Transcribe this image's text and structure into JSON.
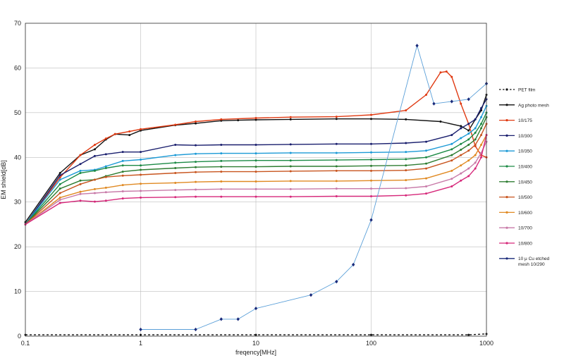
{
  "chart_data": {
    "type": "line",
    "xlabel": "freqency[MHz]",
    "ylabel": "EM shield[dB]",
    "x_scale": "log",
    "xlim": [
      0.1,
      1000
    ],
    "ylim": [
      0,
      70
    ],
    "x_ticks": [
      "0.1",
      "1",
      "10",
      "100",
      "1000"
    ],
    "y_ticks": [
      "0",
      "10",
      "20",
      "30",
      "40",
      "50",
      "60",
      "70"
    ],
    "grid": true,
    "legend_position": "right",
    "series": [
      {
        "name": "PET film",
        "color": "#111111",
        "dashed": true,
        "x": [
          0.1,
          1,
          10,
          100,
          700,
          1000
        ],
        "y": [
          0.3,
          0.3,
          0.3,
          0.3,
          0.3,
          0.5
        ]
      },
      {
        "name": "Ag photo mesh",
        "color": "#111111",
        "x": [
          0.1,
          0.2,
          0.3,
          0.4,
          0.5,
          0.6,
          0.8,
          1,
          2,
          3,
          5,
          7,
          10,
          20,
          50,
          100,
          200,
          400,
          600,
          700,
          800,
          900,
          1000
        ],
        "y": [
          25.5,
          36.5,
          40.5,
          41.8,
          44,
          45.2,
          45,
          46,
          47.2,
          47.6,
          48.2,
          48.3,
          48.4,
          48.5,
          48.6,
          48.6,
          48.5,
          48,
          47,
          46,
          48.5,
          50.5,
          54
        ]
      },
      {
        "name": "10/175",
        "color": "#e03a12",
        "x": [
          0.1,
          0.2,
          0.3,
          0.4,
          0.5,
          0.6,
          0.8,
          1,
          2,
          3,
          5,
          10,
          20,
          50,
          100,
          200,
          300,
          400,
          450,
          500,
          600,
          700,
          800,
          900,
          1000
        ],
        "y": [
          25,
          35.5,
          40.5,
          42.8,
          44.2,
          45.2,
          45.8,
          46.3,
          47.3,
          48,
          48.5,
          48.8,
          49,
          49.1,
          49.5,
          50.5,
          54,
          59,
          59.2,
          58,
          52,
          47.5,
          42.5,
          40.5,
          40
        ]
      },
      {
        "name": "10/300",
        "color": "#1a1f6e",
        "x": [
          0.1,
          0.2,
          0.3,
          0.4,
          0.5,
          0.7,
          1,
          2,
          3,
          5,
          10,
          20,
          50,
          100,
          200,
          300,
          500,
          600,
          700,
          800,
          900,
          1000
        ],
        "y": [
          25,
          36,
          38.5,
          40.3,
          40.7,
          41.2,
          41.2,
          42.8,
          42.7,
          42.8,
          42.8,
          42.9,
          43,
          43,
          43.2,
          43.5,
          45,
          46.5,
          47.5,
          48.5,
          51,
          53
        ]
      },
      {
        "name": "10/350",
        "color": "#1c9ad6",
        "x": [
          0.1,
          0.2,
          0.3,
          0.4,
          0.5,
          0.7,
          1,
          2,
          3,
          5,
          10,
          20,
          50,
          100,
          200,
          300,
          500,
          600,
          700,
          800,
          900,
          1000
        ],
        "y": [
          25,
          35,
          37,
          37.2,
          38,
          39.2,
          39.5,
          40.5,
          40.8,
          40.9,
          40.9,
          41,
          41,
          41.1,
          41.2,
          41.5,
          43,
          44.3,
          45.3,
          46.5,
          49,
          51.5
        ]
      },
      {
        "name": "10/400",
        "color": "#1c8a45",
        "x": [
          0.1,
          0.2,
          0.3,
          0.4,
          0.5,
          0.7,
          1,
          2,
          3,
          5,
          10,
          20,
          50,
          100,
          200,
          300,
          500,
          600,
          700,
          800,
          900,
          1000
        ],
        "y": [
          25,
          34,
          36.5,
          37,
          37.6,
          38.2,
          38.2,
          38.8,
          39,
          39.2,
          39.3,
          39.3,
          39.4,
          39.5,
          39.6,
          40,
          41.8,
          43,
          44,
          45.5,
          47.5,
          50
        ]
      },
      {
        "name": "10/450",
        "color": "#2e7d32",
        "x": [
          0.1,
          0.2,
          0.3,
          0.4,
          0.5,
          0.7,
          1,
          2,
          3,
          5,
          10,
          20,
          50,
          100,
          200,
          300,
          500,
          600,
          700,
          800,
          900,
          1000
        ],
        "y": [
          25,
          33,
          34.8,
          35,
          35.8,
          36.8,
          37.2,
          37.6,
          37.8,
          37.9,
          37.9,
          38,
          38,
          38.1,
          38.2,
          38.6,
          40.5,
          41.7,
          42.8,
          44,
          46.5,
          49
        ]
      },
      {
        "name": "10/500",
        "color": "#c8551f",
        "x": [
          0.1,
          0.2,
          0.3,
          0.4,
          0.5,
          0.7,
          1,
          2,
          3,
          5,
          10,
          20,
          50,
          100,
          200,
          300,
          500,
          600,
          700,
          800,
          900,
          1000
        ],
        "y": [
          25,
          32,
          34,
          35,
          35.6,
          35.9,
          36.1,
          36.5,
          36.7,
          36.8,
          36.8,
          36.9,
          37,
          37,
          37.1,
          37.5,
          39.3,
          40.5,
          41.5,
          42.8,
          45,
          47.5
        ]
      },
      {
        "name": "10/600",
        "color": "#e08a23",
        "x": [
          0.1,
          0.2,
          0.3,
          0.4,
          0.5,
          0.7,
          1,
          2,
          3,
          5,
          10,
          20,
          50,
          100,
          200,
          300,
          500,
          600,
          700,
          800,
          900,
          1000
        ],
        "y": [
          25,
          31,
          32.3,
          32.9,
          33.2,
          33.8,
          34.1,
          34.3,
          34.5,
          34.6,
          34.6,
          34.7,
          34.7,
          34.8,
          34.9,
          35.3,
          37,
          38.2,
          39.3,
          40.5,
          42.8,
          45
        ]
      },
      {
        "name": "10/700",
        "color": "#c87aa8",
        "x": [
          0.1,
          0.2,
          0.3,
          0.4,
          0.5,
          0.7,
          1,
          2,
          3,
          5,
          10,
          20,
          50,
          100,
          200,
          300,
          500,
          600,
          700,
          800,
          900,
          1000
        ],
        "y": [
          25,
          30.5,
          31.8,
          32,
          32.2,
          32.4,
          32.5,
          32.7,
          32.8,
          32.9,
          32.9,
          32.9,
          33,
          33,
          33.1,
          33.5,
          35.2,
          36.4,
          37.5,
          38.8,
          41,
          43.5
        ]
      },
      {
        "name": "10/800",
        "color": "#d6287a",
        "x": [
          0.1,
          0.2,
          0.3,
          0.4,
          0.5,
          0.7,
          1,
          2,
          3,
          5,
          10,
          20,
          50,
          100,
          200,
          300,
          500,
          600,
          700,
          800,
          900,
          1000
        ],
        "y": [
          25,
          29.8,
          30.3,
          30.1,
          30.3,
          30.8,
          31,
          31.1,
          31.2,
          31.2,
          31.2,
          31.2,
          31.3,
          31.3,
          31.5,
          31.9,
          33.5,
          34.8,
          35.8,
          37.5,
          40,
          45
        ]
      },
      {
        "name": "10 μ Cu etched mesh 10/290",
        "color": "#1a2a7a",
        "line_color": "#5a9fd8",
        "x": [
          1,
          3,
          5,
          7,
          10,
          30,
          50,
          70,
          100,
          250,
          350,
          500,
          700,
          1000
        ],
        "y": [
          1.5,
          1.5,
          3.8,
          3.8,
          6.2,
          9.2,
          12.2,
          16,
          26,
          65,
          52,
          52.5,
          53,
          56.5
        ]
      }
    ]
  }
}
